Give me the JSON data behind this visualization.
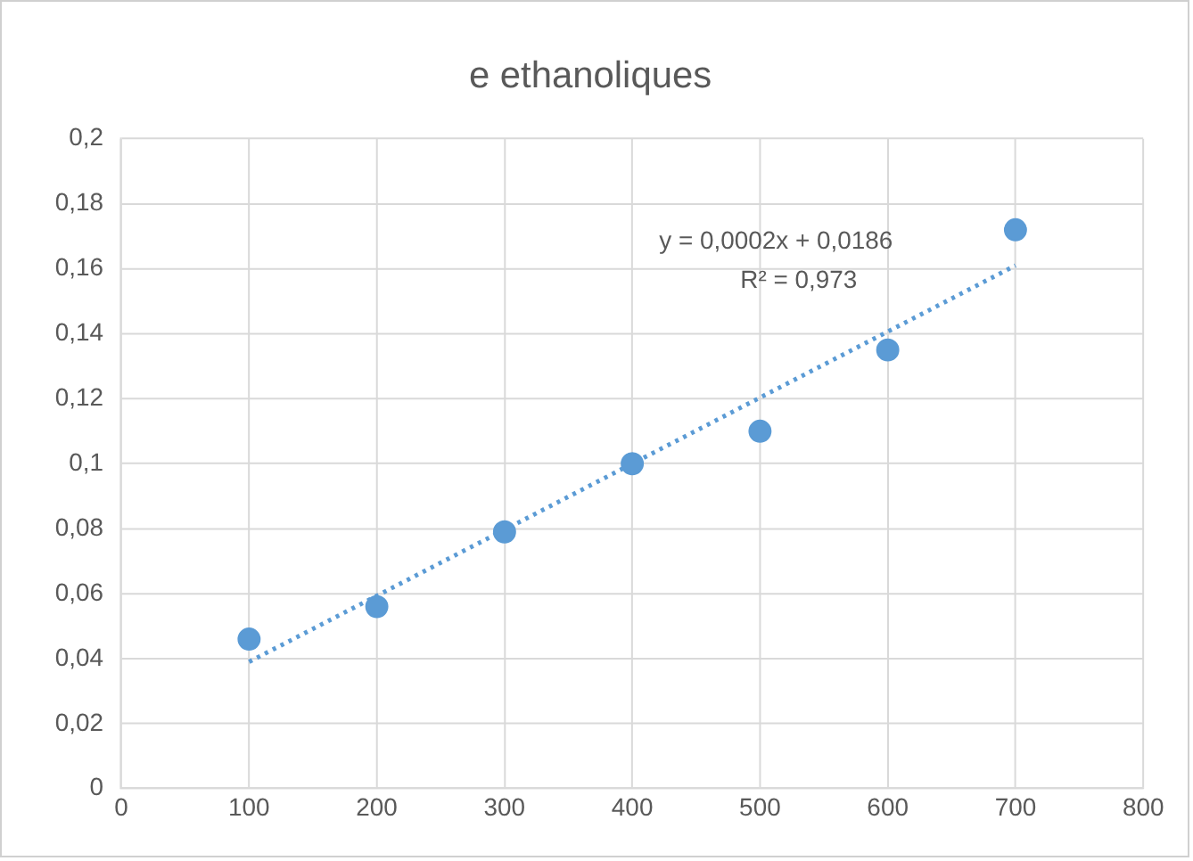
{
  "chart_data": {
    "type": "scatter",
    "title": "e ethanoliques",
    "x": [
      100,
      200,
      300,
      400,
      500,
      600,
      700
    ],
    "series": [
      {
        "color": "#5b9bd5",
        "values": [
          0.046,
          0.056,
          0.079,
          0.1,
          0.11,
          0.135,
          0.172
        ],
        "marker": "circle"
      },
      {
        "type": "line",
        "color": "#5b9bd5",
        "x": [
          100,
          700
        ],
        "values": [
          0.039,
          0.161
        ],
        "line_style": "dotted",
        "marker": "none"
      }
    ],
    "xlim": [
      0,
      800
    ],
    "xticks": [
      0,
      100,
      200,
      300,
      400,
      500,
      600,
      700,
      800
    ],
    "ylim": [
      0,
      0.2
    ],
    "yticks": [
      0,
      {
        "value": 0.02,
        "label": "0,02"
      },
      {
        "value": 0.04,
        "label": "0,04"
      },
      {
        "value": 0.06,
        "label": "0,06"
      },
      {
        "value": 0.08,
        "label": "0,08"
      },
      {
        "value": 0.1,
        "label": "0,1"
      },
      {
        "value": 0.12,
        "label": "0,12"
      },
      {
        "value": 0.14,
        "label": "0,14"
      },
      {
        "value": 0.16,
        "label": "0,16"
      },
      {
        "value": 0.18,
        "label": "0,18"
      },
      {
        "value": 0.2,
        "label": "0,2"
      }
    ],
    "annotations": [
      "y = 0,0002x + 0,0186",
      "R² = 0,973"
    ],
    "grid": true,
    "legend": false
  }
}
